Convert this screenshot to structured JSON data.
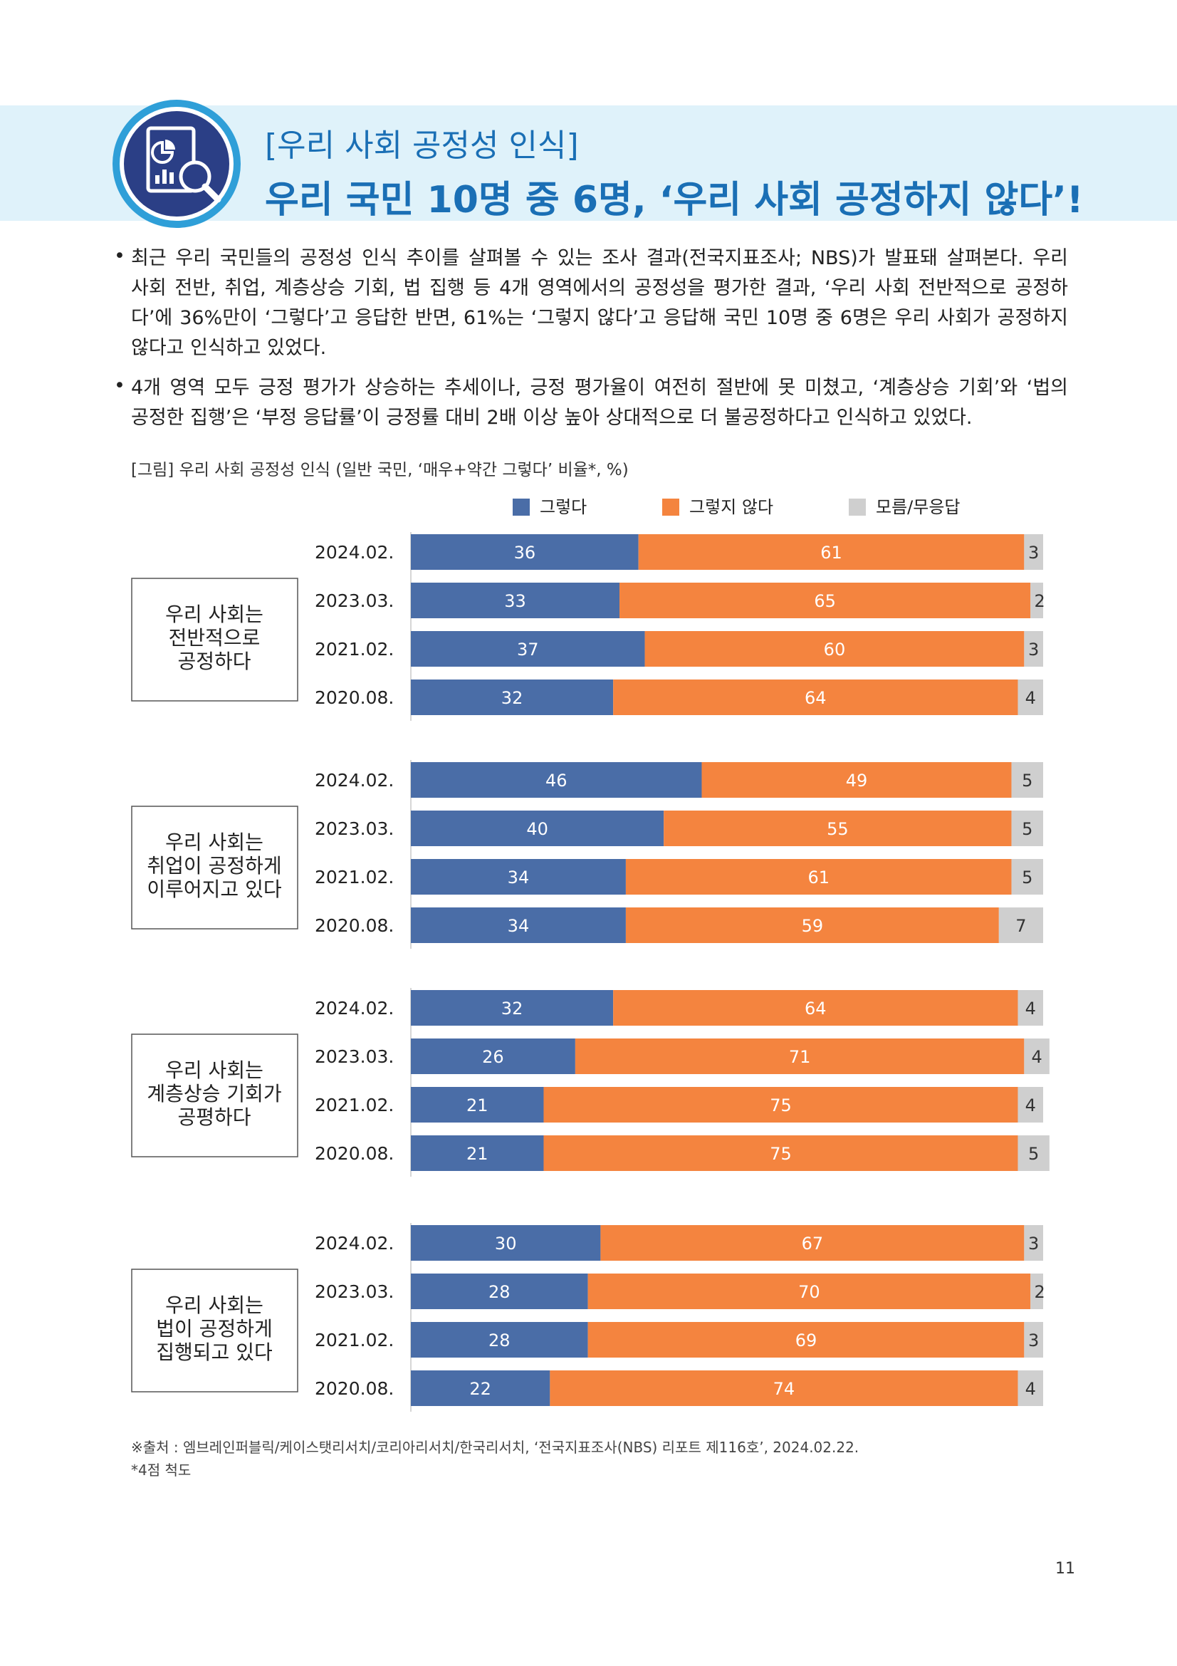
{
  "header": {
    "subtitle": "[우리 사회 공정성 인식]",
    "title": "우리 국민 10명 중 6명, ‘우리 사회 공정하지 않다’!",
    "icon": "report-magnifier-icon"
  },
  "bullets": [
    {
      "symbol": "•",
      "lines": [
        "최근 우리 국민들의 공정성 인식 추이를 살펴볼 수 있는 조사 결과(전국지표조사; NBS)가 발표돼 살펴본다. 우리",
        "사회 전반, 취업, 계층상승 기회, 법 집행 등 4개 영역에서의 공정성을 평가한 결과, ‘우리 사회 전반적으로 공정하",
        "다’에 36%만이 ‘그렇다’고 응답한 반면, 61%는 ‘그렇지 않다’고 응답해 국민 10명 중 6명은 우리 사회가 공정하지",
        "않다고 인식하고 있었다."
      ]
    },
    {
      "symbol": "•",
      "lines": [
        "4개 영역 모두 긍정 평가가 상승하는 추세이나, 긍정 평가율이 여전히 절반에 못 미쳤고, ‘계층상승 기회’와 ‘법의",
        "공정한 집행’은 ‘부정 응답률’이 긍정률 대비 2배 이상 높아 상대적으로 더 불공정하다고 인식하고 있었다."
      ]
    }
  ],
  "caption": "[그림] 우리 사회 공정성 인식 (일반 국민, ‘매우+약간 그렇다’ 비율*, %)",
  "chart_data": {
    "type": "bar",
    "orientation": "horizontal",
    "stacked": true,
    "legend_position": "top",
    "categories": [
      "2024.02.",
      "2023.03.",
      "2021.02.",
      "2020.08."
    ],
    "series": [
      {
        "name": "그렇다",
        "color": "#4a6da7"
      },
      {
        "name": "그렇지 않다",
        "color": "#f4843f"
      },
      {
        "name": "모름/무응답",
        "color": "#cfcfcf"
      }
    ],
    "groups": [
      {
        "label": [
          "우리 사회는",
          "전반적으로",
          "공정하다"
        ],
        "values": [
          [
            36,
            61,
            3
          ],
          [
            33,
            65,
            2
          ],
          [
            37,
            60,
            3
          ],
          [
            32,
            64,
            4
          ]
        ]
      },
      {
        "label": [
          "우리 사회는",
          "취업이 공정하게",
          "이루어지고 있다"
        ],
        "values": [
          [
            46,
            49,
            5
          ],
          [
            40,
            55,
            5
          ],
          [
            34,
            61,
            5
          ],
          [
            34,
            59,
            7
          ]
        ]
      },
      {
        "label": [
          "우리 사회는",
          "계층상승 기회가",
          "공평하다"
        ],
        "values": [
          [
            32,
            64,
            4
          ],
          [
            26,
            71,
            4
          ],
          [
            21,
            75,
            4
          ],
          [
            21,
            75,
            5
          ]
        ]
      },
      {
        "label": [
          "우리 사회는",
          "법이 공정하게",
          "집행되고 있다"
        ],
        "values": [
          [
            30,
            67,
            3
          ],
          [
            28,
            70,
            2
          ],
          [
            28,
            69,
            3
          ],
          [
            22,
            74,
            4
          ]
        ]
      }
    ]
  },
  "footer": {
    "source": "※출처 : 엠브레인퍼블릭/케이스탯리서치/코리아리서치/한국리서치, ‘전국지표조사(NBS) 리포트 제116호’, 2024.02.22.",
    "note": "*4점 척도",
    "page": "11"
  }
}
